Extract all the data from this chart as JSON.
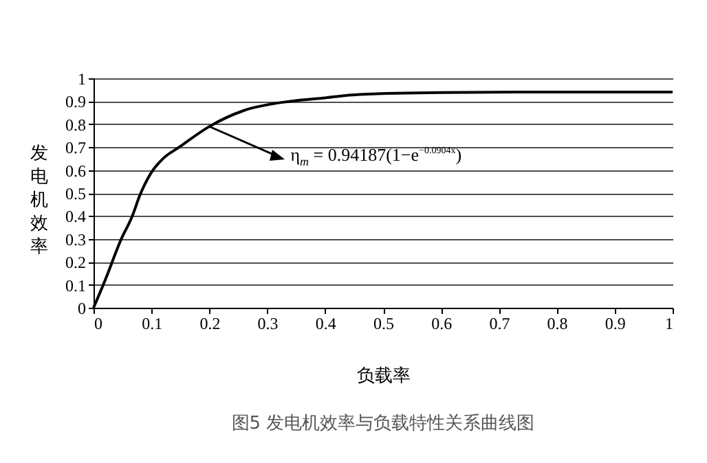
{
  "chart_data": {
    "type": "line",
    "xlabel": "负载率",
    "ylabel": "发电机效率",
    "title": "图5  发电机效率与负载特性关系曲线图",
    "annotations": [
      {
        "text": "η$_{m}$ = 0.94187(1−e$^{−0.0904x}$)",
        "x": 0.2,
        "y": 0.79
      }
    ],
    "x": [
      0,
      0.02,
      0.048,
      0.067,
      0.08,
      0.1,
      0.12,
      0.148,
      0.2,
      0.26,
      0.34,
      0.4,
      0.46,
      0.6,
      0.8,
      1
    ],
    "series": [
      {
        "color": "#000000",
        "values": [
          0,
          0.12,
          0.3,
          0.4,
          0.49,
          0.59,
          0.65,
          0.7,
          0.79,
          0.86,
          0.9,
          0.915,
          0.93,
          0.938,
          0.94,
          0.94
        ]
      }
    ],
    "xlim": [
      0,
      1
    ],
    "xticks": [
      0,
      0.1,
      0.2,
      0.3,
      0.4,
      0.5,
      0.6,
      0.7,
      0.8,
      0.9,
      1
    ],
    "ylim": [
      0,
      1
    ],
    "yticks": [
      0,
      0.1,
      0.2,
      0.3,
      0.4,
      0.5,
      0.6,
      0.7,
      0.8,
      0.9,
      1
    ],
    "grid": "y",
    "marker": "none",
    "line_style": "solid",
    "legend": false
  }
}
